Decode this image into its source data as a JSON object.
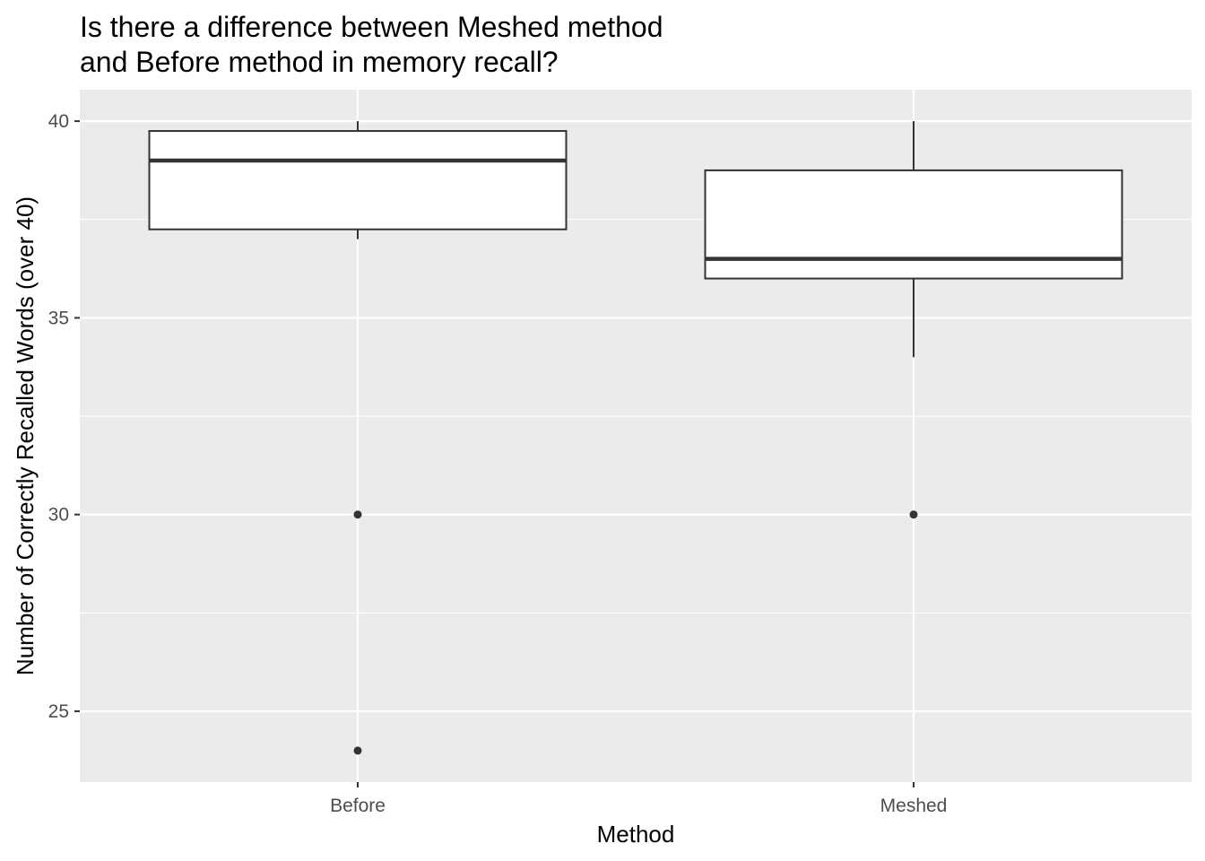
{
  "chart_data": {
    "type": "boxplot",
    "title": [
      "Is there a difference between Meshed method",
      "and Before method in memory recall?"
    ],
    "xlabel": "Method",
    "ylabel": "Number of Correctly Recalled Words (over 40)",
    "categories": [
      "Before",
      "Meshed"
    ],
    "ylim": [
      23.2,
      40.8
    ],
    "yticks": [
      25,
      30,
      35,
      40
    ],
    "grid": true,
    "boxes": [
      {
        "category": "Before",
        "q1": 37.25,
        "median": 39,
        "q3": 39.75,
        "whisker_low": 37,
        "whisker_high": 40,
        "outliers": [
          30,
          24
        ]
      },
      {
        "category": "Meshed",
        "q1": 36,
        "median": 36.5,
        "q3": 38.75,
        "whisker_low": 34,
        "whisker_high": 40,
        "outliers": [
          30
        ]
      }
    ],
    "colors": {
      "panel": "#ebebeb",
      "grid": "#ffffff",
      "box_fill": "#ffffff",
      "box_line": "#333333",
      "outlier": "#333333"
    }
  }
}
